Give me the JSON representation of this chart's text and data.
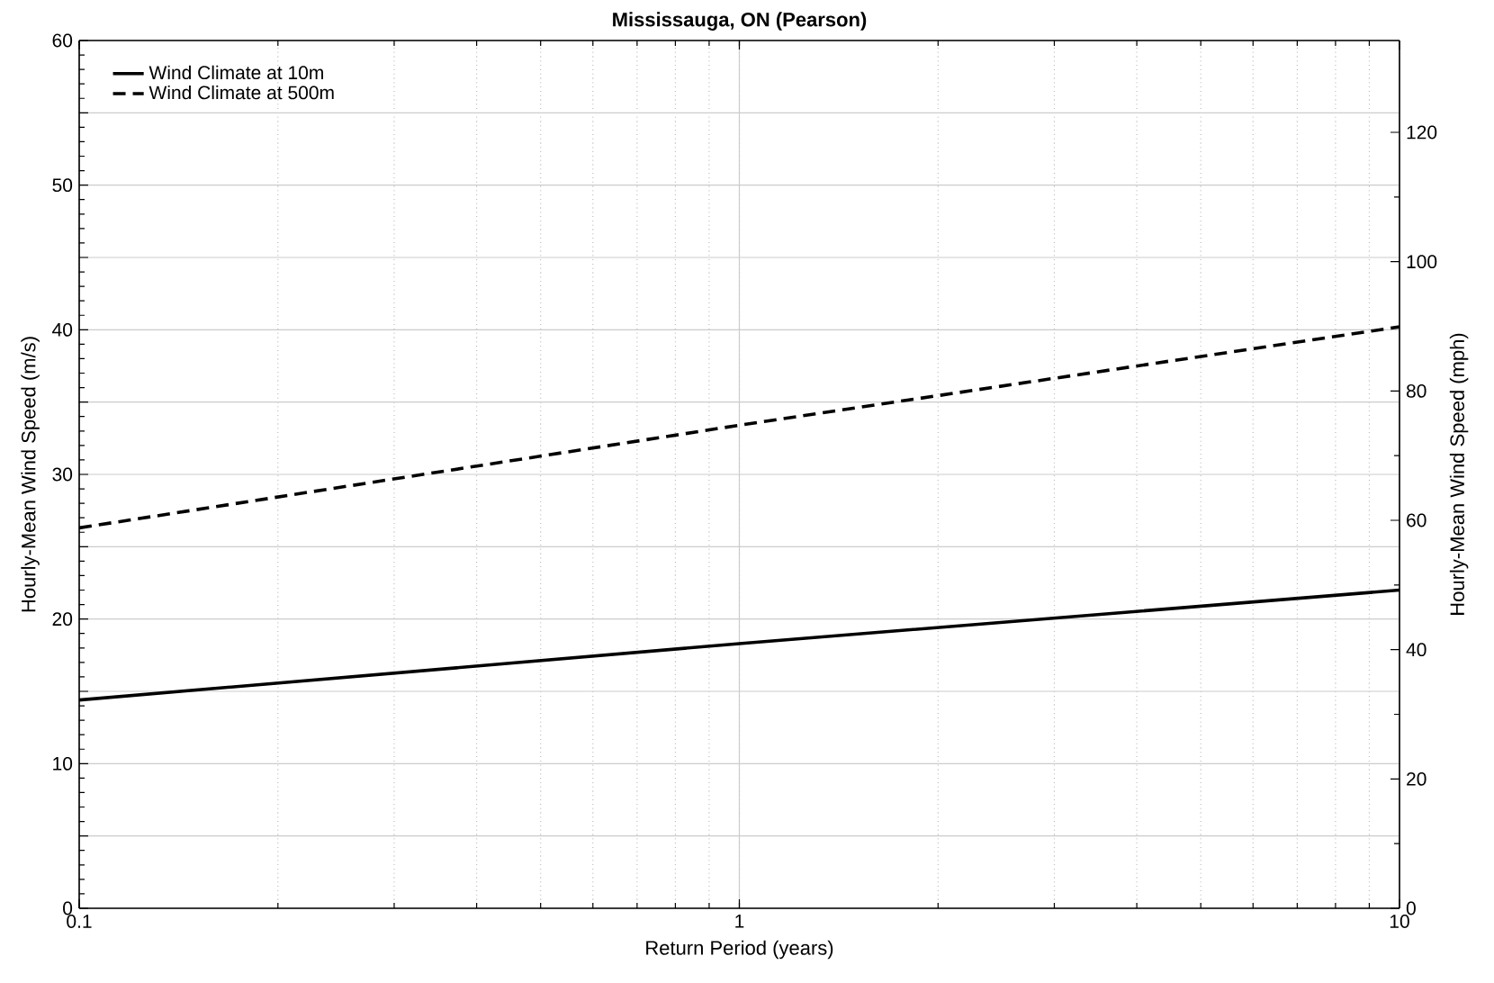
{
  "chart_data": {
    "type": "line",
    "title": "Mississauga, ON (Pearson)",
    "xlabel": "Return Period (years)",
    "ylabel": "Hourly-Mean Wind Speed (m/s)",
    "y2label": "Hourly-Mean Wind Speed (mph)",
    "x": [
      0.1,
      1,
      10
    ],
    "series": [
      {
        "name": "Wind Climate at 10m",
        "color": "#000000",
        "line_style": "solid",
        "values": [
          14.4,
          18.3,
          22.0
        ]
      },
      {
        "name": "Wind Climate at 500m",
        "color": "#000000",
        "line_style": "dashed",
        "values": [
          26.3,
          33.4,
          40.2
        ]
      }
    ],
    "log": "x",
    "xlim": [
      0.1,
      10
    ],
    "xticks": [
      0.1,
      1,
      10
    ],
    "ylim": [
      0,
      60
    ],
    "yticks": [
      0,
      {
        "value": 5,
        "label": null
      },
      10,
      {
        "value": 15,
        "label": null
      },
      20,
      {
        "value": 25,
        "label": null
      },
      30,
      {
        "value": 35,
        "label": null
      },
      40,
      {
        "value": 45,
        "label": null
      },
      50,
      {
        "value": 55,
        "label": null
      },
      60
    ],
    "y2lim": [
      0,
      134.2
    ],
    "y2ticks": [
      0,
      20,
      40,
      60,
      80,
      100,
      120
    ],
    "grid": true,
    "legend": "top left"
  }
}
